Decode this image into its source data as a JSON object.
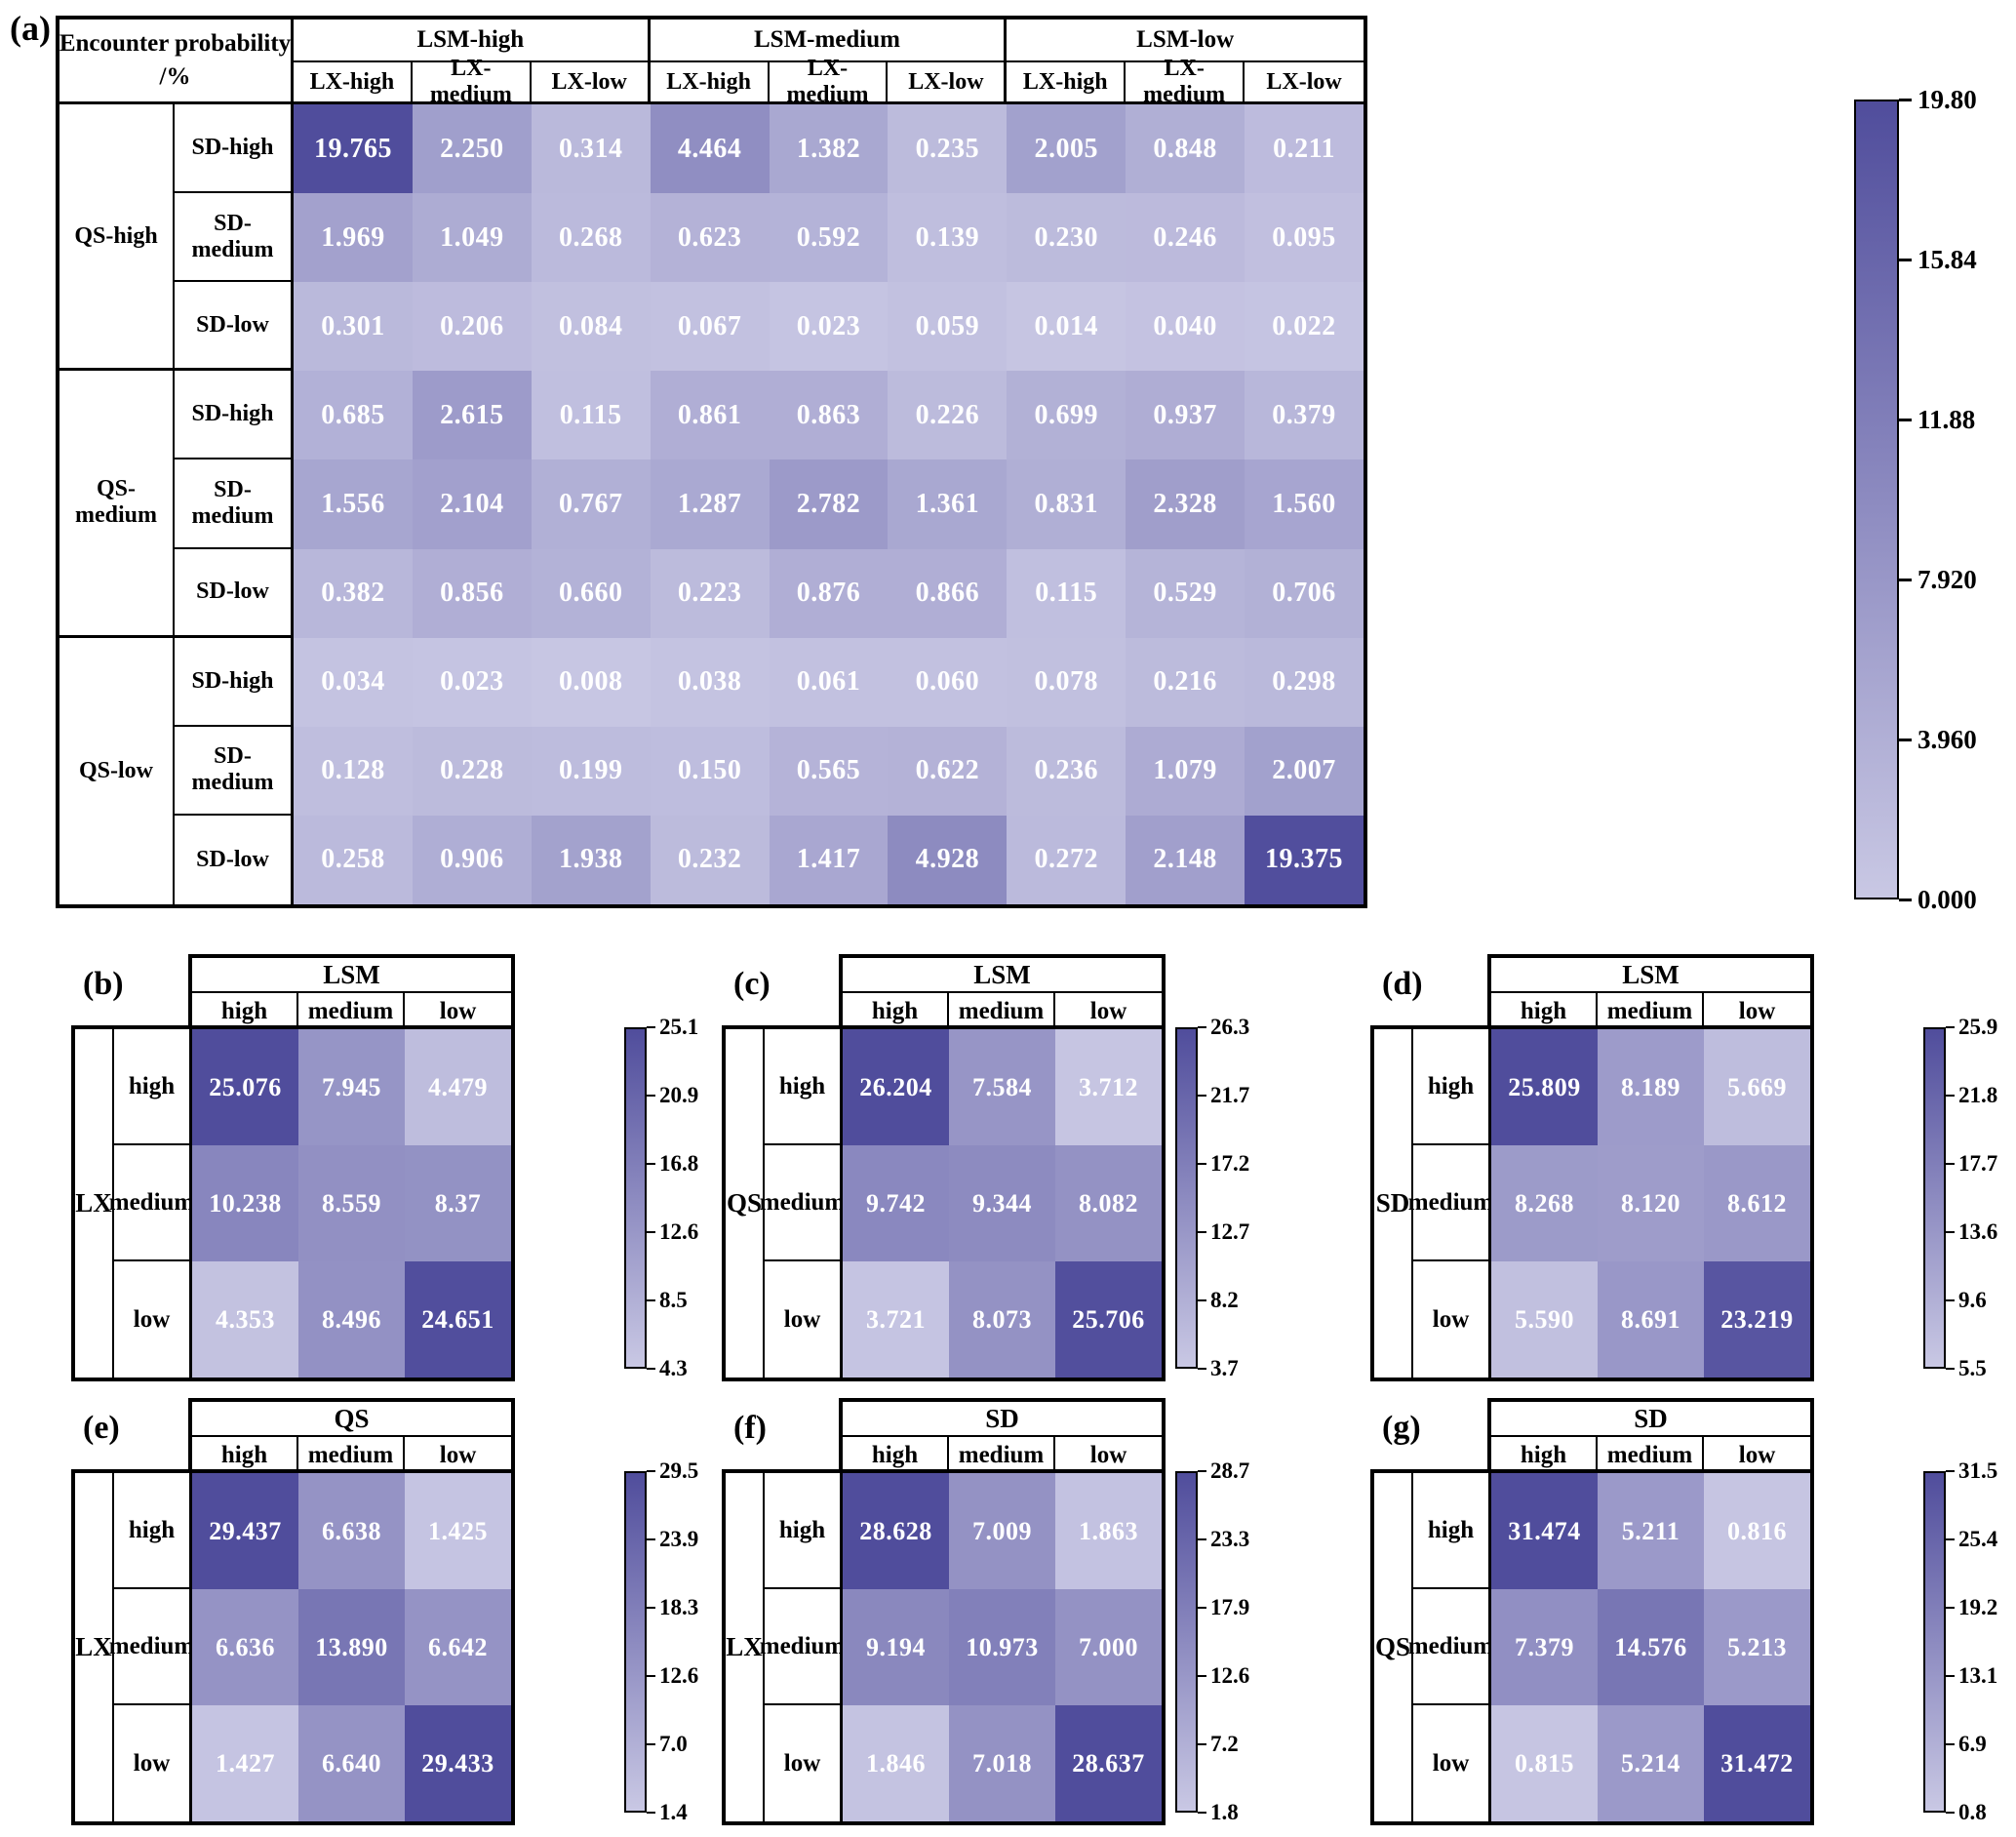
{
  "style": {
    "heat_light": "#c9c8e4",
    "heat_dark": "#504d9c",
    "cell_text_color": "#ffffff",
    "border_color": "#000000"
  },
  "chart_data": [
    {
      "type": "heatmap",
      "panel": "a",
      "label": "(a)",
      "title_lines": [
        "Encounter probability",
        "/%"
      ],
      "col_group_labels": [
        "LSM-high",
        "LSM-medium",
        "LSM-low"
      ],
      "col_sub_labels": [
        "LX-high",
        "LX-medium",
        "LX-low"
      ],
      "row_group_labels": [
        "QS-high",
        "QS-medium",
        "QS-low"
      ],
      "row_sub_labels": [
        "SD-high",
        "SD-medium",
        "SD-low"
      ],
      "values": [
        [
          "19.765",
          "2.250",
          "0.314",
          "4.464",
          "1.382",
          "0.235",
          "2.005",
          "0.848",
          "0.211"
        ],
        [
          "1.969",
          "1.049",
          "0.268",
          "0.623",
          "0.592",
          "0.139",
          "0.230",
          "0.246",
          "0.095"
        ],
        [
          "0.301",
          "0.206",
          "0.084",
          "0.067",
          "0.023",
          "0.059",
          "0.014",
          "0.040",
          "0.022"
        ],
        [
          "0.685",
          "2.615",
          "0.115",
          "0.861",
          "0.863",
          "0.226",
          "0.699",
          "0.937",
          "0.379"
        ],
        [
          "1.556",
          "2.104",
          "0.767",
          "1.287",
          "2.782",
          "1.361",
          "0.831",
          "2.328",
          "1.560"
        ],
        [
          "0.382",
          "0.856",
          "0.660",
          "0.223",
          "0.876",
          "0.866",
          "0.115",
          "0.529",
          "0.706"
        ],
        [
          "0.034",
          "0.023",
          "0.008",
          "0.038",
          "0.061",
          "0.060",
          "0.078",
          "0.216",
          "0.298"
        ],
        [
          "0.128",
          "0.228",
          "0.199",
          "0.150",
          "0.565",
          "0.622",
          "0.236",
          "1.079",
          "2.007"
        ],
        [
          "0.258",
          "0.906",
          "1.938",
          "0.232",
          "1.417",
          "4.928",
          "0.272",
          "2.148",
          "19.375"
        ]
      ],
      "colorbar": {
        "ticks": [
          "19.80",
          "15.84",
          "11.88",
          "7.920",
          "3.960",
          "0.000"
        ],
        "vmin": 0.0,
        "vmax": 19.8
      }
    },
    {
      "type": "heatmap",
      "panel": "b",
      "label": "(b)",
      "col_group": "LSM",
      "row_group": "LX",
      "col_labels": [
        "high",
        "medium",
        "low"
      ],
      "row_labels": [
        "high",
        "medium",
        "low"
      ],
      "values": [
        [
          "25.076",
          "7.945",
          "4.479"
        ],
        [
          "10.238",
          "8.559",
          "8.37"
        ],
        [
          "4.353",
          "8.496",
          "24.651"
        ]
      ],
      "colorbar": {
        "ticks": [
          "25.1",
          "20.9",
          "16.8",
          "12.6",
          "8.5",
          "4.3"
        ],
        "vmin": 4.3,
        "vmax": 25.1
      }
    },
    {
      "type": "heatmap",
      "panel": "c",
      "label": "(c)",
      "col_group": "LSM",
      "row_group": "QS",
      "col_labels": [
        "high",
        "medium",
        "low"
      ],
      "row_labels": [
        "high",
        "medium",
        "low"
      ],
      "values": [
        [
          "26.204",
          "7.584",
          "3.712"
        ],
        [
          "9.742",
          "9.344",
          "8.082"
        ],
        [
          "3.721",
          "8.073",
          "25.706"
        ]
      ],
      "colorbar": {
        "ticks": [
          "26.3",
          "21.7",
          "17.2",
          "12.7",
          "8.2",
          "3.7"
        ],
        "vmin": 3.7,
        "vmax": 26.3
      }
    },
    {
      "type": "heatmap",
      "panel": "d",
      "label": "(d)",
      "col_group": "LSM",
      "row_group": "SD",
      "col_labels": [
        "high",
        "medium",
        "low"
      ],
      "row_labels": [
        "high",
        "medium",
        "low"
      ],
      "values": [
        [
          "25.809",
          "8.189",
          "5.669"
        ],
        [
          "8.268",
          "8.120",
          "8.612"
        ],
        [
          "5.590",
          "8.691",
          "23.219"
        ]
      ],
      "colorbar": {
        "ticks": [
          "25.9",
          "21.8",
          "17.7",
          "13.6",
          "9.6",
          "5.5"
        ],
        "vmin": 5.5,
        "vmax": 25.9
      }
    },
    {
      "type": "heatmap",
      "panel": "e",
      "label": "(e)",
      "col_group": "QS",
      "row_group": "LX",
      "col_labels": [
        "high",
        "medium",
        "low"
      ],
      "row_labels": [
        "high",
        "medium",
        "low"
      ],
      "values": [
        [
          "29.437",
          "6.638",
          "1.425"
        ],
        [
          "6.636",
          "13.890",
          "6.642"
        ],
        [
          "1.427",
          "6.640",
          "29.433"
        ]
      ],
      "colorbar": {
        "ticks": [
          "29.5",
          "23.9",
          "18.3",
          "12.6",
          "7.0",
          "1.4"
        ],
        "vmin": 1.4,
        "vmax": 29.5
      }
    },
    {
      "type": "heatmap",
      "panel": "f",
      "label": "(f)",
      "col_group": "SD",
      "row_group": "LX",
      "col_labels": [
        "high",
        "medium",
        "low"
      ],
      "row_labels": [
        "high",
        "medium",
        "low"
      ],
      "values": [
        [
          "28.628",
          "7.009",
          "1.863"
        ],
        [
          "9.194",
          "10.973",
          "7.000"
        ],
        [
          "1.846",
          "7.018",
          "28.637"
        ]
      ],
      "colorbar": {
        "ticks": [
          "28.7",
          "23.3",
          "17.9",
          "12.6",
          "7.2",
          "1.8"
        ],
        "vmin": 1.8,
        "vmax": 28.7
      }
    },
    {
      "type": "heatmap",
      "panel": "g",
      "label": "(g)",
      "col_group": "SD",
      "row_group": "QS",
      "col_labels": [
        "high",
        "medium",
        "low"
      ],
      "row_labels": [
        "high",
        "medium",
        "low"
      ],
      "values": [
        [
          "31.474",
          "5.211",
          "0.816"
        ],
        [
          "7.379",
          "14.576",
          "5.213"
        ],
        [
          "0.815",
          "5.214",
          "31.472"
        ]
      ],
      "colorbar": {
        "ticks": [
          "31.5",
          "25.4",
          "19.2",
          "13.1",
          "6.9",
          "0.8"
        ],
        "vmin": 0.8,
        "vmax": 31.5
      }
    }
  ]
}
